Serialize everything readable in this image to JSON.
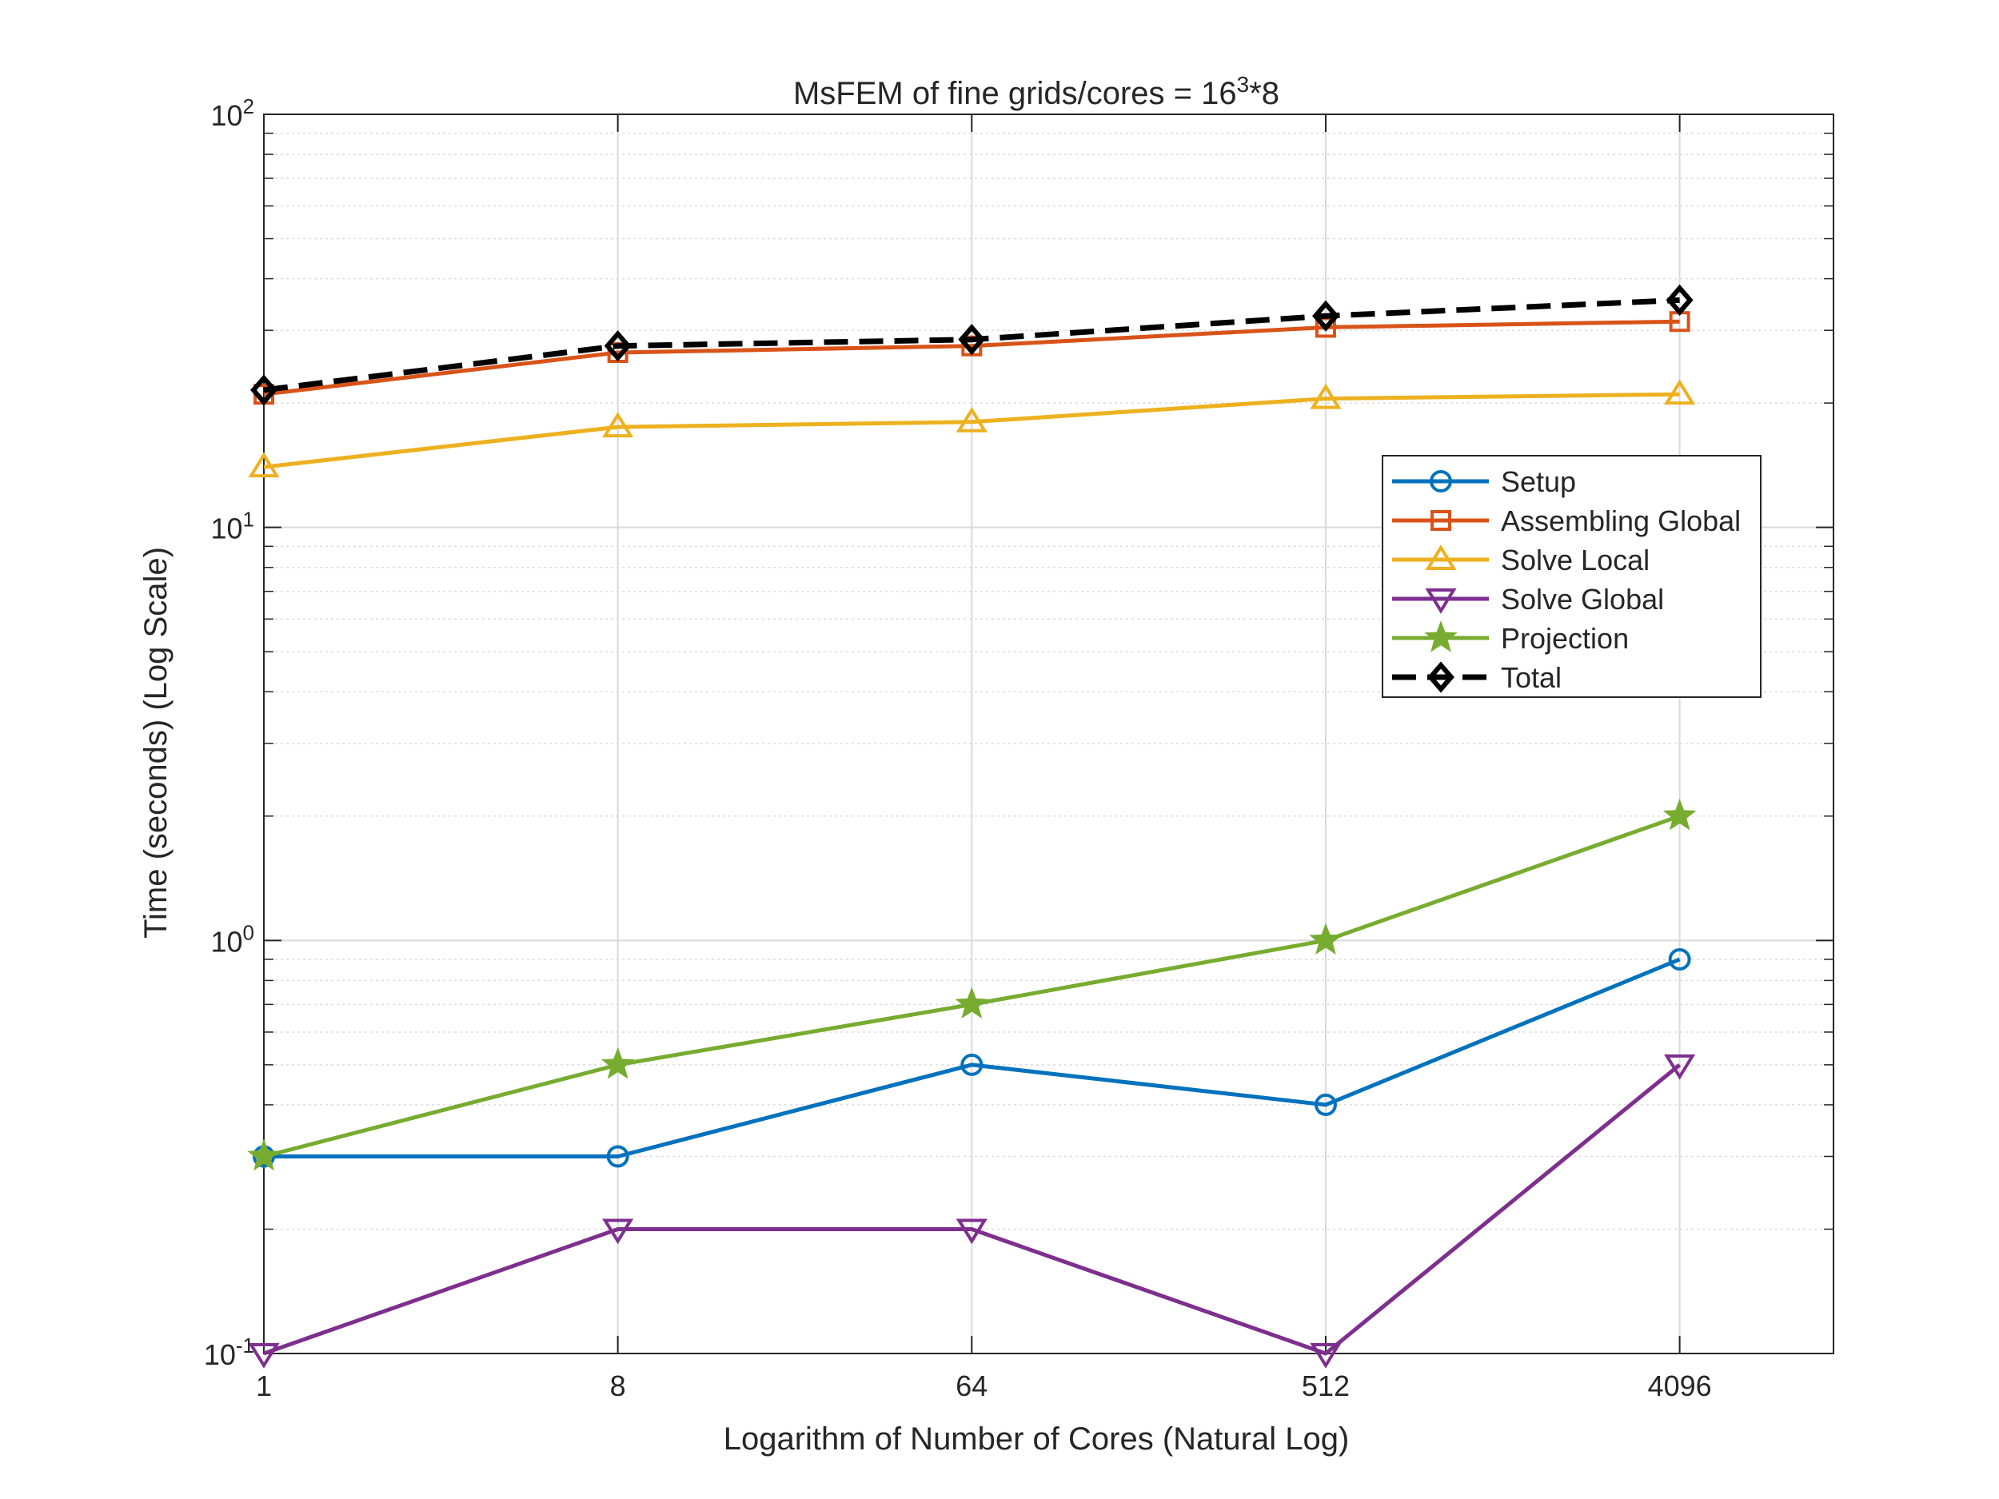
{
  "chart_data": {
    "type": "line",
    "title": "MsFEM of fine grids/cores = 16",
    "title_sup": "3",
    "title_suffix": "*8",
    "xlabel": "Logarithm of Number of Cores (Natural Log)",
    "ylabel": "Time (seconds) (Log Scale)",
    "x": [
      1,
      8,
      64,
      512,
      4096
    ],
    "x_tick_labels": [
      "1",
      "8",
      "64",
      "512",
      "4096"
    ],
    "x_scale": "log",
    "y_scale": "log",
    "ylim": [
      0.1,
      100
    ],
    "y_ticks": [
      {
        "value": 0.1,
        "base": "10",
        "exp": "-1"
      },
      {
        "value": 1,
        "base": "10",
        "exp": "0"
      },
      {
        "value": 10,
        "base": "10",
        "exp": "1"
      },
      {
        "value": 100,
        "base": "10",
        "exp": "2"
      }
    ],
    "grid": true,
    "legend_position": "right, upper-middle",
    "series": [
      {
        "name": "Setup",
        "values": [
          0.3,
          0.3,
          0.5,
          0.4,
          0.9
        ],
        "color": "#0072BD",
        "marker": "circle",
        "dash": false
      },
      {
        "name": "Assembling Global",
        "values": [
          21,
          26.5,
          27.5,
          30.5,
          31.5
        ],
        "color": "#D95319",
        "marker": "square",
        "dash": false
      },
      {
        "name": "Solve Local",
        "values": [
          14,
          17.5,
          18,
          20.5,
          21
        ],
        "color": "#EDB120",
        "marker": "triangle-up",
        "dash": false
      },
      {
        "name": "Solve Global",
        "values": [
          0.1,
          0.2,
          0.2,
          0.1,
          0.5
        ],
        "color": "#7E2F8E",
        "marker": "triangle-down",
        "dash": false
      },
      {
        "name": "Projection",
        "values": [
          0.3,
          0.5,
          0.7,
          1.0,
          2.0
        ],
        "color": "#77AC30",
        "marker": "star",
        "dash": false
      },
      {
        "name": "Total",
        "values": [
          21.5,
          27.5,
          28.5,
          32.5,
          35.5
        ],
        "color": "#000000",
        "marker": "diamond",
        "dash": true
      }
    ]
  }
}
